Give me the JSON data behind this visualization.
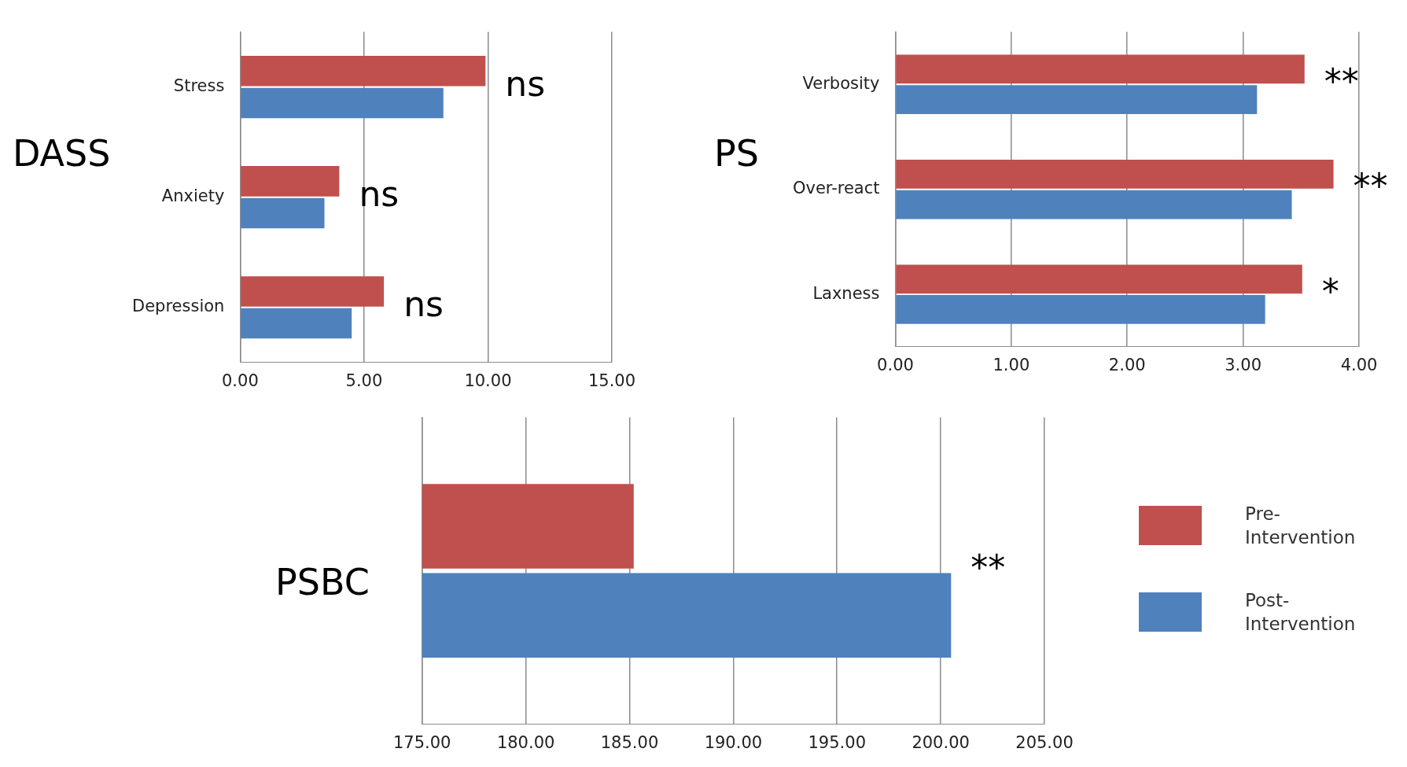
{
  "chart_data": [
    {
      "type": "bar",
      "orientation": "horizontal",
      "title": "DASS",
      "categories": [
        "Stress",
        "Anxiety",
        "Depression"
      ],
      "series": [
        {
          "color": "#c0504d",
          "values": [
            9.9,
            4.0,
            5.8
          ]
        },
        {
          "color": "#4f81bd",
          "values": [
            8.2,
            3.4,
            4.5
          ]
        }
      ],
      "xlim": [
        0,
        15
      ],
      "xticks": [
        {
          "value": 0,
          "label": "0.00"
        },
        {
          "value": 5,
          "label": "5.00"
        },
        {
          "value": 10,
          "label": "10.00"
        },
        {
          "value": 15,
          "label": "15.00"
        }
      ],
      "grid": "x",
      "annotations": [
        "ns",
        "ns",
        "ns"
      ]
    },
    {
      "type": "bar",
      "orientation": "horizontal",
      "title": "PS",
      "categories": [
        "Verbosity",
        "Over-react",
        "Laxness"
      ],
      "series": [
        {
          "color": "#c0504d",
          "values": [
            3.53,
            3.78,
            3.51
          ]
        },
        {
          "color": "#4f81bd",
          "values": [
            3.12,
            3.42,
            3.19
          ]
        }
      ],
      "xlim": [
        0,
        4
      ],
      "xticks": [
        {
          "value": 0,
          "label": "0.00"
        },
        {
          "value": 1,
          "label": "1.00"
        },
        {
          "value": 2,
          "label": "2.00"
        },
        {
          "value": 3,
          "label": "3.00"
        },
        {
          "value": 4,
          "label": "4.00"
        }
      ],
      "grid": "x",
      "annotations": [
        "**",
        "**",
        "*"
      ]
    },
    {
      "type": "bar",
      "orientation": "horizontal",
      "title": "PSBC",
      "categories": [
        null
      ],
      "series": [
        {
          "name": "Pre-Intervention",
          "color": "#c0504d",
          "values": [
            185.2
          ]
        },
        {
          "name": "Post-Intervention",
          "color": "#4f81bd",
          "values": [
            200.5
          ]
        }
      ],
      "xlim": [
        175,
        205
      ],
      "xticks": [
        {
          "value": 175,
          "label": "175.00"
        },
        {
          "value": 180,
          "label": "180.00"
        },
        {
          "value": 185,
          "label": "185.00"
        },
        {
          "value": 190,
          "label": "190.00"
        },
        {
          "value": 195,
          "label": "195.00"
        },
        {
          "value": 200,
          "label": "200.00"
        },
        {
          "value": 205,
          "label": "205.00"
        }
      ],
      "grid": "x",
      "legend": "right",
      "annotations": [
        "**"
      ]
    }
  ]
}
